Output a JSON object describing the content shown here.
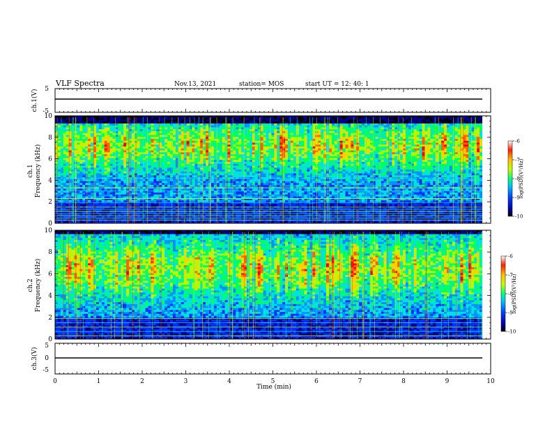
{
  "header": {
    "title": "VLF Spectra",
    "date": "Nov.13, 2021",
    "station": "station= MOS",
    "start": "start  UT =   12: 40: 1"
  },
  "chart_data": [
    {
      "type": "line",
      "name": "ch1-waveform",
      "ylabel": "ch.1(V)",
      "ylim": [
        -5,
        5
      ],
      "yticks": [
        "5",
        "-5"
      ],
      "xlim": [
        0,
        10
      ]
    },
    {
      "type": "heatmap",
      "name": "ch1-spectrogram",
      "ylabel_top": "ch.1",
      "ylabel": "Frequency (kHz)",
      "ylim": [
        0,
        10
      ],
      "yticks": [
        "10",
        "8",
        "6",
        "4",
        "2",
        "0"
      ],
      "xlim": [
        0,
        10
      ],
      "colorbar": {
        "label": "log(PSD)(V²/Hz)",
        "range": [
          -10,
          -6
        ],
        "ticks": [
          "-6",
          "-7",
          "-8",
          "-9",
          "-10"
        ]
      },
      "narrowband_lines_khz": [
        0.3,
        0.5,
        0.7,
        0.9,
        1.1,
        1.3,
        1.5,
        1.9,
        2.3,
        3.0,
        3.3,
        4.2
      ]
    },
    {
      "type": "heatmap",
      "name": "ch2-spectrogram",
      "ylabel_top": "ch.2",
      "ylabel": "Frequency (kHz)",
      "ylim": [
        0,
        10
      ],
      "yticks": [
        "10",
        "8",
        "6",
        "4",
        "2",
        "0"
      ],
      "xlim": [
        0,
        10
      ],
      "colorbar": {
        "label": "log(PSD)(V²/Hz)",
        "range": [
          -10,
          -6
        ],
        "ticks": [
          "-6",
          "-7",
          "-8",
          "-9",
          "-10"
        ]
      },
      "narrowband_lines_khz": [
        0.3,
        0.7,
        1.1,
        1.5,
        1.9
      ]
    },
    {
      "type": "line",
      "name": "ch3-waveform",
      "ylabel": "ch.3(V)",
      "ylim": [
        -5,
        5
      ],
      "yticks": [
        "5",
        "0",
        "-5"
      ],
      "xlim": [
        0,
        10
      ]
    }
  ],
  "xaxis": {
    "label": "Time  (min)",
    "ticks": [
      "0",
      "1",
      "2",
      "3",
      "4",
      "5",
      "6",
      "7",
      "8",
      "9",
      "10"
    ]
  },
  "colors": {
    "colormap": [
      "#000000",
      "#0000aa",
      "#0040ff",
      "#00c0ff",
      "#00ff80",
      "#c0ff00",
      "#ffc000",
      "#ff2000"
    ]
  }
}
